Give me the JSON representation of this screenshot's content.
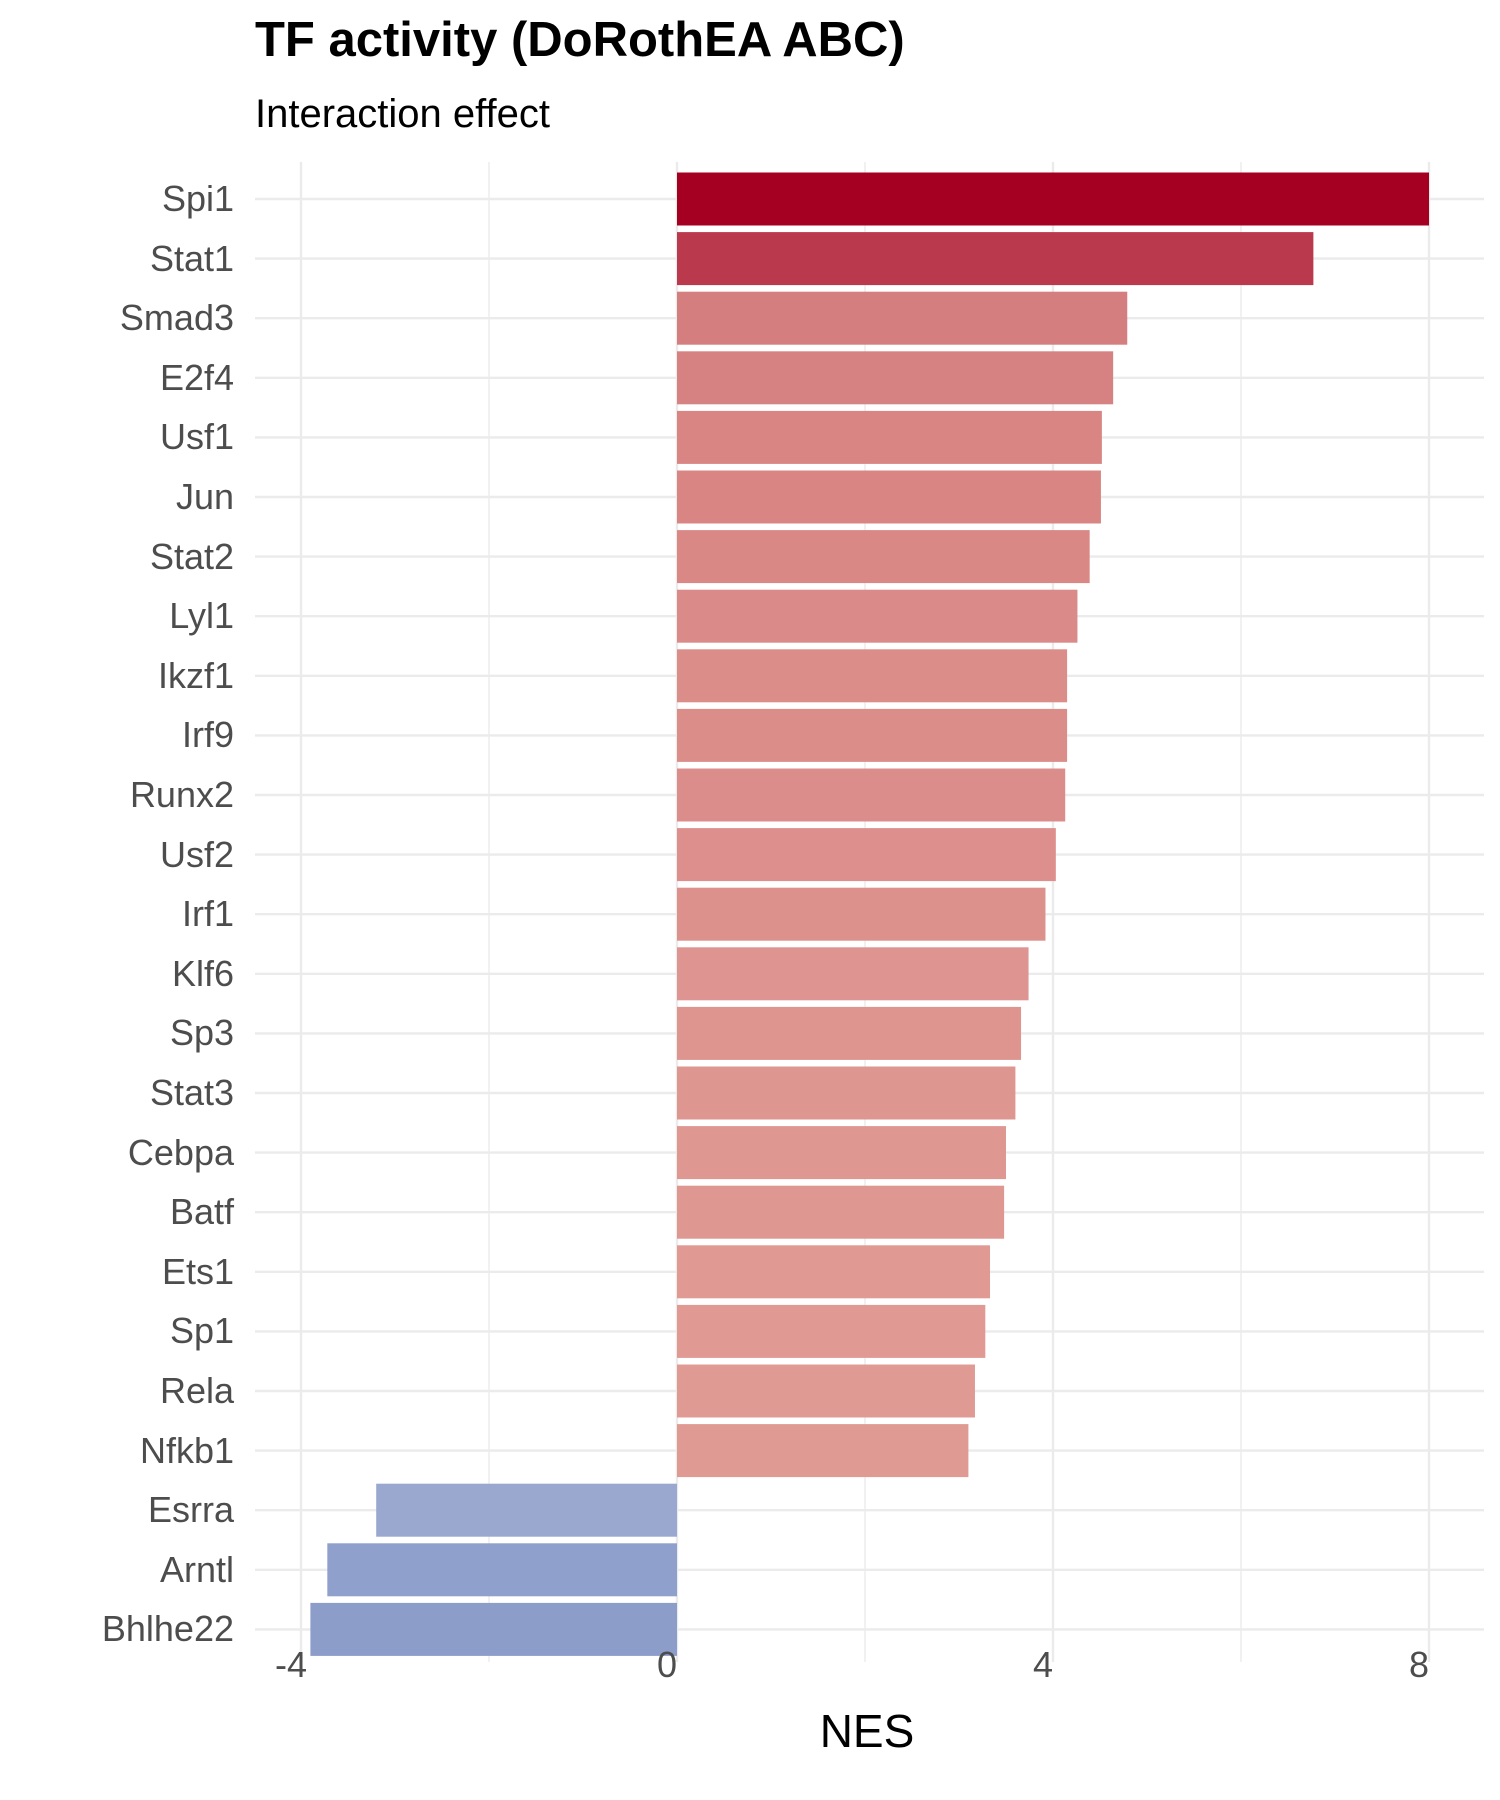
{
  "chart_data": {
    "type": "bar",
    "orientation": "horizontal",
    "title": "TF activity (DoRothEA ABC)",
    "subtitle": "Interaction effect",
    "xlabel": "NES",
    "ylabel": "",
    "xlim": [
      -4.2,
      8.6
    ],
    "xticks": [
      "-4",
      "0",
      "4",
      "8"
    ],
    "grid": true,
    "legend": "none",
    "categories": [
      "Spi1",
      "Stat1",
      "Smad3",
      "E2f4",
      "Usf1",
      "Jun",
      "Stat2",
      "Lyl1",
      "Ikzf1",
      "Irf9",
      "Runx2",
      "Usf2",
      "Irf1",
      "Klf6",
      "Sp3",
      "Stat3",
      "Cebpa",
      "Batf",
      "Ets1",
      "Sp1",
      "Rela",
      "Nfkb1",
      "Esrra",
      "Arntl",
      "Bhlhe22"
    ],
    "values": [
      8.0,
      6.77,
      4.79,
      4.64,
      4.52,
      4.51,
      4.39,
      4.26,
      4.15,
      4.15,
      4.13,
      4.03,
      3.92,
      3.74,
      3.66,
      3.6,
      3.5,
      3.48,
      3.33,
      3.28,
      3.17,
      3.1,
      -3.2,
      -3.72,
      -3.9
    ],
    "colors": {
      "high_positive": "#a50021",
      "low_positive": "#e09a94",
      "negative": "#8c9dca",
      "grid": "#ebebeb",
      "tick_text": "#4d4d4d"
    }
  }
}
